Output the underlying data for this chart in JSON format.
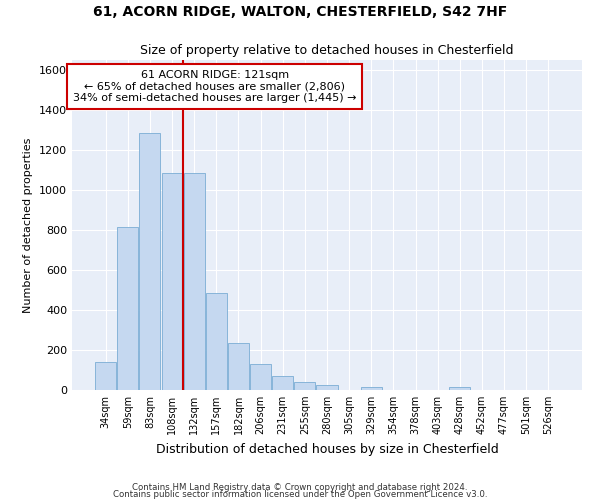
{
  "title1": "61, ACORN RIDGE, WALTON, CHESTERFIELD, S42 7HF",
  "title2": "Size of property relative to detached houses in Chesterfield",
  "xlabel": "Distribution of detached houses by size in Chesterfield",
  "ylabel": "Number of detached properties",
  "categories": [
    "34sqm",
    "59sqm",
    "83sqm",
    "108sqm",
    "132sqm",
    "157sqm",
    "182sqm",
    "206sqm",
    "231sqm",
    "255sqm",
    "280sqm",
    "305sqm",
    "329sqm",
    "354sqm",
    "378sqm",
    "403sqm",
    "428sqm",
    "452sqm",
    "477sqm",
    "501sqm",
    "526sqm"
  ],
  "values": [
    140,
    815,
    1285,
    1085,
    1085,
    485,
    235,
    130,
    68,
    42,
    27,
    0,
    15,
    0,
    0,
    0,
    15,
    0,
    0,
    0,
    0
  ],
  "bar_color": "#c5d8f0",
  "bar_edge_color": "#7aadd4",
  "property_label": "61 ACORN RIDGE: 121sqm",
  "pct_smaller": 65,
  "num_smaller": "2,806",
  "pct_larger_semi": 34,
  "num_larger_semi": "1,445",
  "vline_x_index": 3.5,
  "annotation_box_color": "#cc0000",
  "footer1": "Contains HM Land Registry data © Crown copyright and database right 2024.",
  "footer2": "Contains public sector information licensed under the Open Government Licence v3.0.",
  "ylim": [
    0,
    1650
  ],
  "yticks": [
    0,
    200,
    400,
    600,
    800,
    1000,
    1200,
    1400,
    1600
  ],
  "bg_color": "#e8eef8",
  "grid_color": "#ffffff",
  "fig_bg": "#ffffff"
}
